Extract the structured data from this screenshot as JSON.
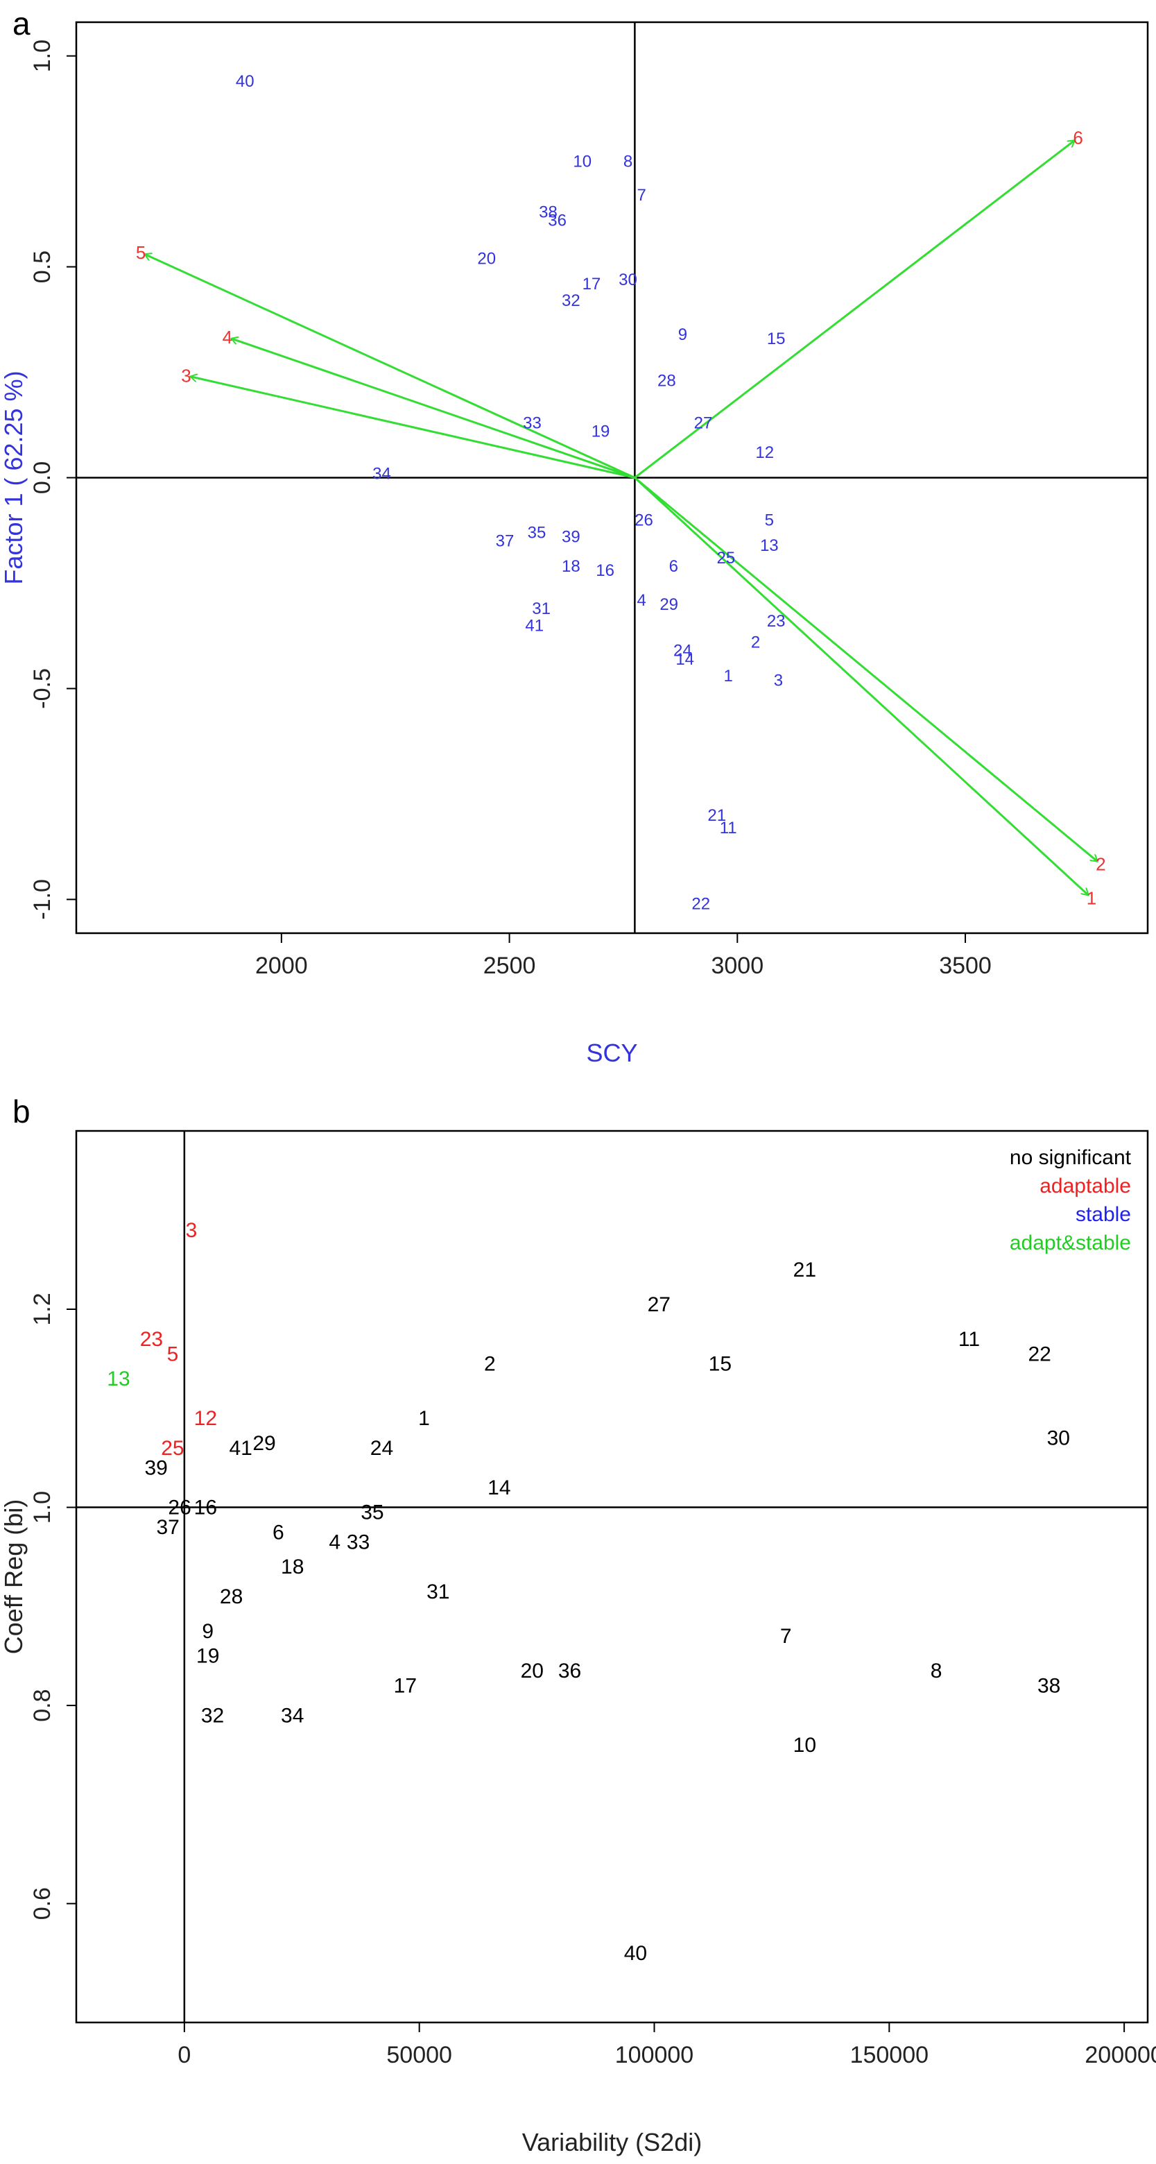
{
  "chart_data": [
    {
      "panel_label": "a",
      "type": "scatter",
      "subtype": "biplot",
      "xlabel": "SCY",
      "ylabel": "Factor 1 ( 62.25 %)",
      "xlim": [
        1550,
        3900
      ],
      "ylim": [
        -1.08,
        1.08
      ],
      "x_ticks": [
        2000,
        2500,
        3000,
        3500
      ],
      "x_tick_labels": [
        "2000",
        "2500",
        "3000",
        "3500"
      ],
      "y_ticks": [
        -1.0,
        -0.5,
        0.0,
        0.5,
        1.0
      ],
      "y_tick_labels": [
        "-1.0",
        "-0.5",
        "0.0",
        "0.5",
        "1.0"
      ],
      "center": {
        "x": 2775,
        "y": 0.0
      },
      "colors": {
        "points": "#3333dd",
        "vectors": "#33dd33",
        "vector_labels": "#ee3333",
        "axis_label": "#3333dd",
        "reference_lines": "#000000"
      },
      "vectors": [
        {
          "label": "6",
          "x": 3740,
          "y": 0.8
        },
        {
          "label": "5",
          "x": 1700,
          "y": 0.53
        },
        {
          "label": "4",
          "x": 1890,
          "y": 0.33
        },
        {
          "label": "3",
          "x": 1800,
          "y": 0.24
        },
        {
          "label": "2",
          "x": 3790,
          "y": -0.91
        },
        {
          "label": "1",
          "x": 3770,
          "y": -0.99
        }
      ],
      "points": [
        {
          "label": "40",
          "x": 1920,
          "y": 0.94
        },
        {
          "label": "10",
          "x": 2660,
          "y": 0.75
        },
        {
          "label": "8",
          "x": 2760,
          "y": 0.75
        },
        {
          "label": "7",
          "x": 2790,
          "y": 0.67
        },
        {
          "label": "38",
          "x": 2585,
          "y": 0.63
        },
        {
          "label": "36",
          "x": 2605,
          "y": 0.61
        },
        {
          "label": "20",
          "x": 2450,
          "y": 0.52
        },
        {
          "label": "17",
          "x": 2680,
          "y": 0.46
        },
        {
          "label": "30",
          "x": 2760,
          "y": 0.47
        },
        {
          "label": "32",
          "x": 2635,
          "y": 0.42
        },
        {
          "label": "9",
          "x": 2880,
          "y": 0.34
        },
        {
          "label": "15",
          "x": 3085,
          "y": 0.33
        },
        {
          "label": "28",
          "x": 2845,
          "y": 0.23
        },
        {
          "label": "27",
          "x": 2925,
          "y": 0.13
        },
        {
          "label": "33",
          "x": 2550,
          "y": 0.13
        },
        {
          "label": "19",
          "x": 2700,
          "y": 0.11
        },
        {
          "label": "12",
          "x": 3060,
          "y": 0.06
        },
        {
          "label": "34",
          "x": 2220,
          "y": 0.01
        },
        {
          "label": "26",
          "x": 2795,
          "y": -0.1
        },
        {
          "label": "5",
          "x": 3070,
          "y": -0.1
        },
        {
          "label": "37",
          "x": 2490,
          "y": -0.15
        },
        {
          "label": "35",
          "x": 2560,
          "y": -0.13
        },
        {
          "label": "39",
          "x": 2635,
          "y": -0.14
        },
        {
          "label": "13",
          "x": 3070,
          "y": -0.16
        },
        {
          "label": "25",
          "x": 2975,
          "y": -0.19
        },
        {
          "label": "18",
          "x": 2635,
          "y": -0.21
        },
        {
          "label": "16",
          "x": 2710,
          "y": -0.22
        },
        {
          "label": "6",
          "x": 2860,
          "y": -0.21
        },
        {
          "label": "4",
          "x": 2790,
          "y": -0.29
        },
        {
          "label": "29",
          "x": 2850,
          "y": -0.3
        },
        {
          "label": "31",
          "x": 2570,
          "y": -0.31
        },
        {
          "label": "41",
          "x": 2555,
          "y": -0.35
        },
        {
          "label": "23",
          "x": 3085,
          "y": -0.34
        },
        {
          "label": "2",
          "x": 3040,
          "y": -0.39
        },
        {
          "label": "24",
          "x": 2880,
          "y": -0.41
        },
        {
          "label": "14",
          "x": 2885,
          "y": -0.43
        },
        {
          "label": "1",
          "x": 2980,
          "y": -0.47
        },
        {
          "label": "3",
          "x": 3090,
          "y": -0.48
        },
        {
          "label": "21",
          "x": 2955,
          "y": -0.8
        },
        {
          "label": "11",
          "x": 2980,
          "y": -0.83
        },
        {
          "label": "22",
          "x": 2920,
          "y": -1.01
        }
      ]
    },
    {
      "panel_label": "b",
      "type": "scatter",
      "xlabel": "Variability (S2di)",
      "ylabel": "Coeff Reg (bi)",
      "xlim": [
        -23000,
        205000
      ],
      "ylim": [
        0.48,
        1.38
      ],
      "x_ticks": [
        0,
        50000,
        100000,
        150000,
        200000
      ],
      "x_tick_labels": [
        "0",
        "50000",
        "100000",
        "150000",
        "200000"
      ],
      "y_ticks": [
        0.6,
        0.8,
        1.0,
        1.2
      ],
      "y_tick_labels": [
        "0.6",
        "0.8",
        "1.0",
        "1.2"
      ],
      "reference_lines": {
        "x": 0,
        "y": 1.0
      },
      "legend": {
        "position": "top-right",
        "entries": [
          {
            "label": "no significant",
            "category": "no significant",
            "color": "#000000"
          },
          {
            "label": "adaptable",
            "category": "adaptable",
            "color": "#ee2222"
          },
          {
            "label": "stable",
            "category": "stable",
            "color": "#2222ee"
          },
          {
            "label": "adapt&stable",
            "category": "adapt&stable",
            "color": "#22cc22"
          }
        ]
      },
      "points": [
        {
          "label": "3",
          "x": 1500,
          "y": 1.28,
          "category": "adaptable"
        },
        {
          "label": "23",
          "x": -7000,
          "y": 1.17,
          "category": "adaptable"
        },
        {
          "label": "5",
          "x": -2500,
          "y": 1.155,
          "category": "adaptable"
        },
        {
          "label": "13",
          "x": -14000,
          "y": 1.13,
          "category": "adapt&stable"
        },
        {
          "label": "12",
          "x": 4500,
          "y": 1.09,
          "category": "adaptable"
        },
        {
          "label": "25",
          "x": -2500,
          "y": 1.06,
          "category": "adaptable"
        },
        {
          "label": "39",
          "x": -6000,
          "y": 1.04,
          "category": "no significant"
        },
        {
          "label": "26",
          "x": -1000,
          "y": 1.0,
          "category": "no significant"
        },
        {
          "label": "16",
          "x": 4500,
          "y": 1.0,
          "category": "no significant"
        },
        {
          "label": "37",
          "x": -3500,
          "y": 0.98,
          "category": "no significant"
        },
        {
          "label": "21",
          "x": 132000,
          "y": 1.24,
          "category": "no significant"
        },
        {
          "label": "27",
          "x": 101000,
          "y": 1.205,
          "category": "no significant"
        },
        {
          "label": "11",
          "x": 167000,
          "y": 1.17,
          "category": "no significant"
        },
        {
          "label": "22",
          "x": 182000,
          "y": 1.155,
          "category": "no significant"
        },
        {
          "label": "2",
          "x": 65000,
          "y": 1.145,
          "category": "no significant"
        },
        {
          "label": "15",
          "x": 114000,
          "y": 1.145,
          "category": "no significant"
        },
        {
          "label": "1",
          "x": 51000,
          "y": 1.09,
          "category": "no significant"
        },
        {
          "label": "29",
          "x": 17000,
          "y": 1.065,
          "category": "no significant"
        },
        {
          "label": "41",
          "x": 12000,
          "y": 1.06,
          "category": "no significant"
        },
        {
          "label": "24",
          "x": 42000,
          "y": 1.06,
          "category": "no significant"
        },
        {
          "label": "30",
          "x": 186000,
          "y": 1.07,
          "category": "no significant"
        },
        {
          "label": "14",
          "x": 67000,
          "y": 1.02,
          "category": "no significant"
        },
        {
          "label": "35",
          "x": 40000,
          "y": 0.995,
          "category": "no significant"
        },
        {
          "label": "6",
          "x": 20000,
          "y": 0.975,
          "category": "no significant"
        },
        {
          "label": "4",
          "x": 32000,
          "y": 0.965,
          "category": "no significant"
        },
        {
          "label": "33",
          "x": 37000,
          "y": 0.965,
          "category": "no significant"
        },
        {
          "label": "18",
          "x": 23000,
          "y": 0.94,
          "category": "no significant"
        },
        {
          "label": "31",
          "x": 54000,
          "y": 0.915,
          "category": "no significant"
        },
        {
          "label": "28",
          "x": 10000,
          "y": 0.91,
          "category": "no significant"
        },
        {
          "label": "9",
          "x": 5000,
          "y": 0.875,
          "category": "no significant"
        },
        {
          "label": "19",
          "x": 5000,
          "y": 0.85,
          "category": "no significant"
        },
        {
          "label": "7",
          "x": 128000,
          "y": 0.87,
          "category": "no significant"
        },
        {
          "label": "8",
          "x": 160000,
          "y": 0.835,
          "category": "no significant"
        },
        {
          "label": "20",
          "x": 74000,
          "y": 0.835,
          "category": "no significant"
        },
        {
          "label": "36",
          "x": 82000,
          "y": 0.835,
          "category": "no significant"
        },
        {
          "label": "17",
          "x": 47000,
          "y": 0.82,
          "category": "no significant"
        },
        {
          "label": "38",
          "x": 184000,
          "y": 0.82,
          "category": "no significant"
        },
        {
          "label": "32",
          "x": 6000,
          "y": 0.79,
          "category": "no significant"
        },
        {
          "label": "34",
          "x": 23000,
          "y": 0.79,
          "category": "no significant"
        },
        {
          "label": "10",
          "x": 132000,
          "y": 0.76,
          "category": "no significant"
        },
        {
          "label": "40",
          "x": 96000,
          "y": 0.55,
          "category": "no significant"
        }
      ]
    }
  ]
}
